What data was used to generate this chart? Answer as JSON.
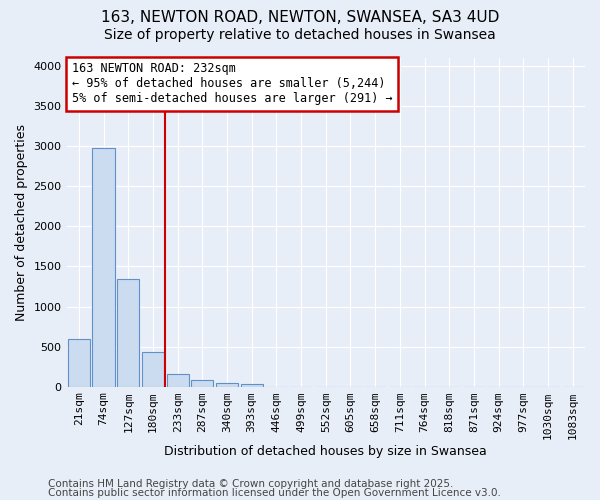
{
  "title_line1": "163, NEWTON ROAD, NEWTON, SWANSEA, SA3 4UD",
  "title_line2": "Size of property relative to detached houses in Swansea",
  "xlabel": "Distribution of detached houses by size in Swansea",
  "ylabel": "Number of detached properties",
  "categories": [
    "21sqm",
    "74sqm",
    "127sqm",
    "180sqm",
    "233sqm",
    "287sqm",
    "340sqm",
    "393sqm",
    "446sqm",
    "499sqm",
    "552sqm",
    "605sqm",
    "658sqm",
    "711sqm",
    "764sqm",
    "818sqm",
    "871sqm",
    "924sqm",
    "977sqm",
    "1030sqm",
    "1083sqm"
  ],
  "values": [
    590,
    2970,
    1340,
    435,
    160,
    80,
    50,
    40,
    0,
    0,
    0,
    0,
    0,
    0,
    0,
    0,
    0,
    0,
    0,
    0,
    0
  ],
  "bar_color": "#ccdcf0",
  "bar_edge_color": "#6090c8",
  "vline_color": "#cc0000",
  "vline_index": 4,
  "ylim": [
    0,
    4100
  ],
  "yticks": [
    0,
    500,
    1000,
    1500,
    2000,
    2500,
    3000,
    3500,
    4000
  ],
  "annotation_text_line1": "163 NEWTON ROAD: 232sqm",
  "annotation_text_line2": "← 95% of detached houses are smaller (5,244)",
  "annotation_text_line3": "5% of semi-detached houses are larger (291) →",
  "annotation_box_color": "#cc0000",
  "annotation_box_facecolor": "#ffffff",
  "footer_line1": "Contains HM Land Registry data © Crown copyright and database right 2025.",
  "footer_line2": "Contains public sector information licensed under the Open Government Licence v3.0.",
  "bg_color": "#e8eef8",
  "plot_bg_color": "#e8eef8",
  "grid_color": "#ffffff",
  "title_fontsize": 11,
  "subtitle_fontsize": 10,
  "axis_label_fontsize": 9,
  "tick_fontsize": 8,
  "annotation_fontsize": 8.5,
  "footer_fontsize": 7.5
}
